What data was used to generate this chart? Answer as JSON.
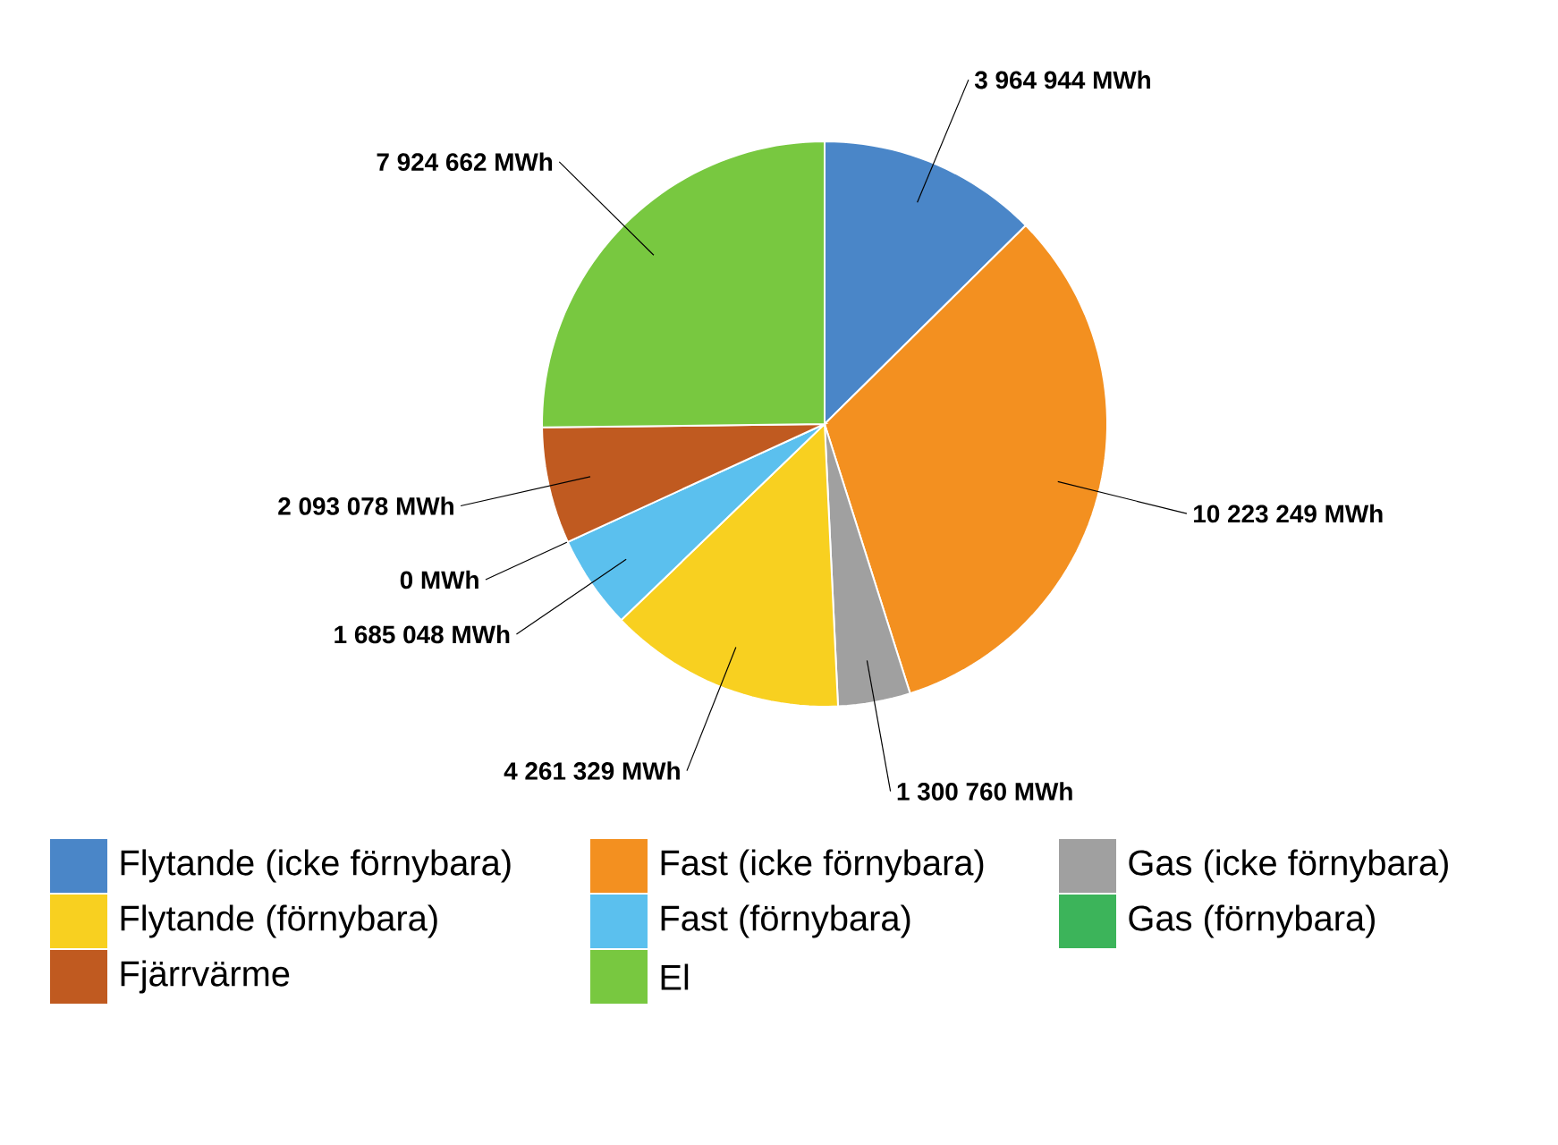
{
  "chart_data": {
    "type": "pie",
    "categories": [
      "Flytande (icke förnybara)",
      "Fast (icke förnybara)",
      "Gas (icke förnybara)",
      "Flytande (förnybara)",
      "Fast (förnybara)",
      "Gas (förnybara)",
      "Fjärrvärme",
      "El"
    ],
    "values": [
      3964944,
      10223249,
      1300760,
      4261329,
      1685048,
      0,
      2093078,
      7924662
    ],
    "colors": [
      "#4a86c8",
      "#f39020",
      "#a0a0a0",
      "#f8d020",
      "#5bc0ee",
      "#3cb45a",
      "#c05a20",
      "#78c840"
    ],
    "value_labels": [
      "3 964 944 MWh",
      "10 223 249 MWh",
      "1 300 760 MWh",
      "4 261 329 MWh",
      "1 685 048 MWh",
      "0 MWh",
      "2 093 078 MWh",
      "7 924 662 MWh"
    ],
    "legend": "bottom"
  }
}
